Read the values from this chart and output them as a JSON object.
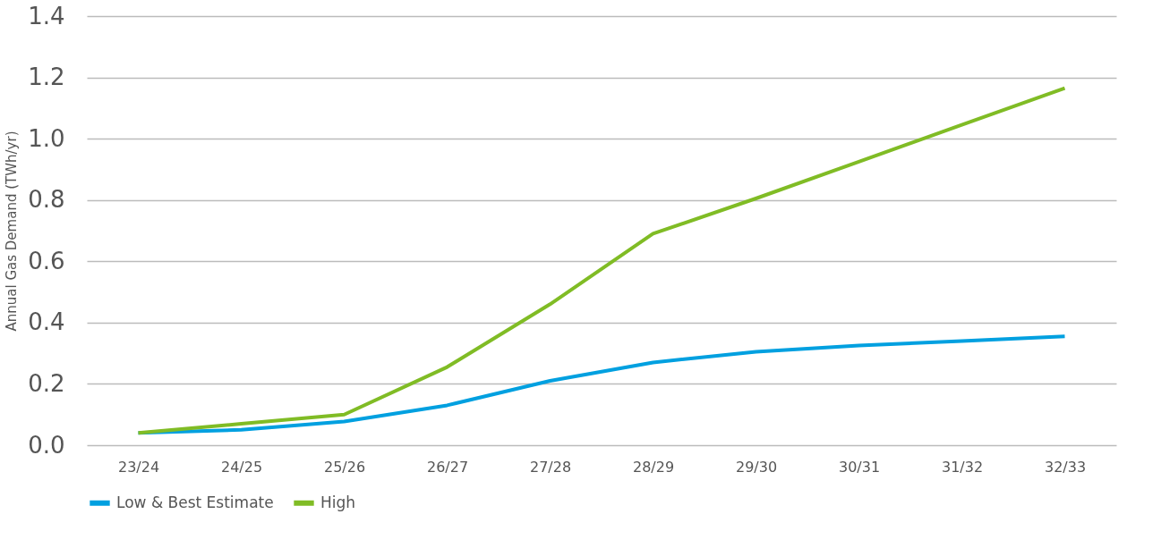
{
  "chart_data": {
    "type": "line",
    "ylabel": "Annual Gas Demand (TWh/yr)",
    "categories": [
      "23/24",
      "24/25",
      "25/26",
      "26/27",
      "27/28",
      "28/29",
      "29/30",
      "30/31",
      "31/32",
      "32/33"
    ],
    "series": [
      {
        "name": "Low & Best Estimate",
        "color": "#00a0e0",
        "values": [
          0.04,
          0.05,
          0.077,
          0.13,
          0.21,
          0.27,
          0.305,
          0.325,
          0.34,
          0.355
        ]
      },
      {
        "name": "High",
        "color": "#80bc25",
        "values": [
          0.04,
          0.07,
          0.1,
          0.255,
          0.46,
          0.69,
          0.805,
          0.925,
          1.045,
          1.165
        ]
      }
    ],
    "ylim": [
      0,
      1.4
    ],
    "yticks": [
      {
        "value": 0,
        "label": "0.0"
      },
      {
        "value": 0.2,
        "label": "0.2"
      },
      {
        "value": 0.4,
        "label": "0.4"
      },
      {
        "value": 0.6,
        "label": "0.6"
      },
      {
        "value": 0.8,
        "label": "0.8"
      },
      {
        "value": 1.0,
        "label": "1.0"
      },
      {
        "value": 1.2,
        "label": "1.2"
      },
      {
        "value": 1.4,
        "label": "1.4"
      }
    ],
    "grid": "y",
    "legend": "bottom",
    "marker": "none",
    "line_style": "solid"
  }
}
